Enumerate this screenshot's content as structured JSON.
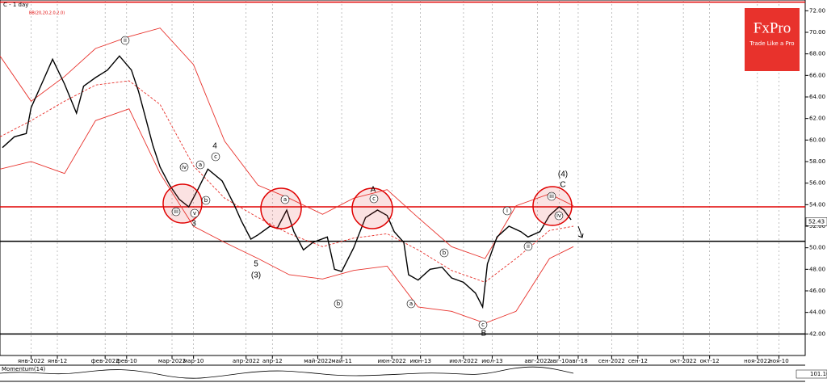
{
  "chart_data": {
    "type": "line",
    "title": "C - 1 day",
    "indicator": "BB(20,20,2.0,2.0)",
    "x": [
      -11,
      -6,
      -1,
      1,
      6,
      10,
      15,
      20,
      23,
      28,
      33,
      38,
      43,
      46,
      49,
      52,
      55,
      59,
      63,
      67,
      71,
      75,
      81,
      86,
      89,
      93,
      96,
      101,
      104,
      108,
      111,
      115,
      119,
      125,
      128,
      131,
      136,
      141,
      146,
      150,
      153,
      157,
      159,
      163,
      168,
      173,
      177,
      182,
      187,
      190,
      192,
      196,
      201,
      206,
      209,
      214,
      218,
      222,
      224,
      227
    ],
    "series": [
      {
        "color": "#000000",
        "values": [
          59.3,
          60.3,
          60.6,
          63.0,
          65.5,
          67.5,
          65.2,
          62.5,
          65.0,
          65.8,
          66.5,
          67.8,
          66.5,
          64.5,
          62.0,
          59.5,
          57.5,
          55.8,
          54.5,
          53.8,
          55.5,
          57.3,
          56.2,
          54.0,
          52.5,
          50.8,
          51.2,
          52.0,
          51.8,
          53.5,
          51.5,
          49.8,
          50.5,
          51.0,
          48.0,
          47.8,
          50.0,
          52.8,
          53.5,
          53.0,
          51.5,
          50.5,
          47.5,
          47.0,
          48.0,
          48.2,
          47.2,
          46.8,
          45.8,
          44.5,
          48.5,
          51.0,
          52.0,
          51.5,
          51.0,
          51.5,
          53.0,
          53.8,
          53.5,
          52.6
        ]
      }
    ],
    "bands": {
      "color": "#e8322c",
      "x": [
        -12,
        1,
        15,
        28,
        42,
        55,
        69,
        82,
        96,
        109,
        123,
        136,
        150,
        163,
        177,
        191,
        204,
        218,
        228
      ],
      "upper": [
        67.8,
        63.6,
        65.9,
        68.5,
        69.6,
        70.4,
        67.0,
        59.9,
        55.8,
        54.6,
        53.1,
        54.6,
        55.4,
        52.8,
        50.1,
        49.0,
        53.9,
        55.0,
        53.9
      ],
      "middle": [
        60.3,
        61.8,
        63.6,
        65.1,
        65.5,
        63.3,
        57.6,
        54.6,
        52.8,
        51.3,
        50.1,
        50.9,
        51.3,
        49.8,
        47.9,
        46.8,
        49.0,
        51.6,
        52.0
      ],
      "lower": [
        57.3,
        58.0,
        56.9,
        61.8,
        62.9,
        56.9,
        52.0,
        50.5,
        49.0,
        47.5,
        47.1,
        47.9,
        48.3,
        44.5,
        44.1,
        43.0,
        44.1,
        49.0,
        50.1
      ]
    },
    "hlines": [
      {
        "value": 72.8,
        "color": "#e00000"
      },
      {
        "value": 53.8,
        "color": "#e00000"
      },
      {
        "value": 50.6,
        "color": "#000000"
      },
      {
        "value": 42.0,
        "color": "#000000"
      }
    ],
    "last_price": {
      "value": 52.43,
      "label": "52.43"
    },
    "xlim": [
      -12,
      325
    ],
    "xticks": [
      {
        "value": 1,
        "label": "янв-2022"
      },
      {
        "value": 12,
        "label": "янв-12"
      },
      {
        "value": 32,
        "label": "фев-2022"
      },
      {
        "value": 41,
        "label": "фев-10"
      },
      {
        "value": 60,
        "label": "мар-2022"
      },
      {
        "value": 69,
        "label": "мар-10"
      },
      {
        "value": 91,
        "label": "апр-2022"
      },
      {
        "value": 102,
        "label": "апр-12"
      },
      {
        "value": 121,
        "label": "май-2022"
      },
      {
        "value": 131,
        "label": "май-11"
      },
      {
        "value": 152,
        "label": "июн-2022"
      },
      {
        "value": 164,
        "label": "июн-13"
      },
      {
        "value": 182,
        "label": "июл-2022"
      },
      {
        "value": 194,
        "label": "июл-13"
      },
      {
        "value": 213,
        "label": "авг-2022"
      },
      {
        "value": 222,
        "label": "авг-10"
      },
      {
        "value": 230,
        "label": "авг-18"
      },
      {
        "value": 244,
        "label": "сен-2022"
      },
      {
        "value": 255,
        "label": "сен-12"
      },
      {
        "value": 274,
        "label": "окт-2022"
      },
      {
        "value": 285,
        "label": "окт-12"
      },
      {
        "value": 305,
        "label": "ноя-2022"
      },
      {
        "value": 314,
        "label": "ноя-10"
      }
    ],
    "ylim": [
      40,
      73
    ],
    "yticks": [
      {
        "value": 42,
        "label": "42.00"
      },
      {
        "value": 44,
        "label": "44.00"
      },
      {
        "value": 46,
        "label": "46.00"
      },
      {
        "value": 48,
        "label": "48.00"
      },
      {
        "value": 50,
        "label": "50.00"
      },
      {
        "value": 52,
        "label": "52.00"
      },
      {
        "value": 54,
        "label": "54.00"
      },
      {
        "value": 56,
        "label": "56.00"
      },
      {
        "value": 58,
        "label": "58.00"
      },
      {
        "value": 60,
        "label": "60.00"
      },
      {
        "value": 62,
        "label": "62.00"
      },
      {
        "value": 64,
        "label": "64.00"
      },
      {
        "value": 66,
        "label": "66.00"
      },
      {
        "value": 68,
        "label": "68.00"
      },
      {
        "value": 70,
        "label": "70.00"
      },
      {
        "value": 72,
        "label": "72.00"
      }
    ],
    "annotations": [
      {
        "text": "ii",
        "circled": true
      },
      {
        "text": "iv",
        "circled": true
      },
      {
        "text": "iii",
        "circled": true
      },
      {
        "text": "v",
        "circled": true
      },
      {
        "text": "3",
        "circled": false
      },
      {
        "text": "a",
        "circled": true
      },
      {
        "text": "b",
        "circled": true
      },
      {
        "text": "c",
        "circled": true
      },
      {
        "text": "4",
        "circled": false
      },
      {
        "text": "5",
        "circled": false
      },
      {
        "text": "(3)",
        "circled": false
      },
      {
        "text": "a",
        "circled": true
      },
      {
        "text": "b",
        "circled": true
      },
      {
        "text": "c",
        "circled": true
      },
      {
        "text": "A",
        "circled": false
      },
      {
        "text": "a",
        "circled": true
      },
      {
        "text": "b",
        "circled": true
      },
      {
        "text": "c",
        "circled": true
      },
      {
        "text": "B",
        "circled": false
      },
      {
        "text": "i",
        "circled": true
      },
      {
        "text": "ii",
        "circled": true
      },
      {
        "text": "iii",
        "circled": true
      },
      {
        "text": "iv",
        "circled": true
      },
      {
        "text": "(4)",
        "circled": false
      },
      {
        "text": "C",
        "circled": false
      }
    ],
    "momentum_label": "Momentum(14)",
    "momentum_value": "101.10",
    "logo": {
      "brand": "FxPro",
      "tagline": "Trade Like a Pro"
    }
  }
}
